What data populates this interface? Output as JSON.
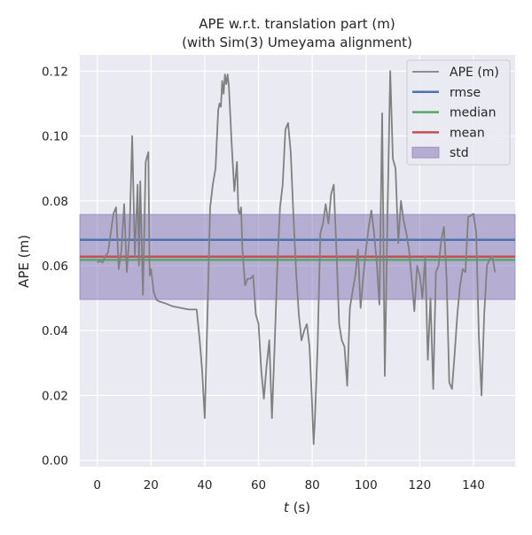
{
  "chart_data": {
    "type": "line",
    "title": "APE w.r.t. translation part (m)",
    "subtitle": "(with Sim(3) Umeyama alignment)",
    "xlabel_italic": "t",
    "xlabel_rest": " (s)",
    "ylabel": "APE (m)",
    "xlim": [
      -6.5,
      155.5
    ],
    "ylim": [
      -0.002,
      0.125
    ],
    "x_ticks": [
      0,
      20,
      40,
      60,
      80,
      100,
      120,
      140
    ],
    "y_ticks": [
      0.0,
      0.02,
      0.04,
      0.06,
      0.08,
      0.1,
      0.12
    ],
    "y_tick_labels": [
      "0.00",
      "0.02",
      "0.04",
      "0.06",
      "0.08",
      "0.10",
      "0.12"
    ],
    "grid": true,
    "legend_position": "top-right",
    "legend": [
      {
        "label": "APE (m)",
        "type": "line",
        "color": "#808080"
      },
      {
        "label": "rmse",
        "type": "line",
        "color": "#4c72b0"
      },
      {
        "label": "median",
        "type": "line",
        "color": "#55a868"
      },
      {
        "label": "mean",
        "type": "line",
        "color": "#c44e52"
      },
      {
        "label": "std",
        "type": "area",
        "color": "#8172b2"
      }
    ],
    "stats": {
      "rmse": 0.068,
      "median": 0.0618,
      "mean": 0.0628,
      "std_low": 0.0496,
      "std_high": 0.0758
    },
    "series": [
      {
        "name": "APE (m)",
        "color": "#808080",
        "x": [
          0,
          1,
          2,
          3,
          4,
          5,
          6,
          7,
          8,
          9,
          10,
          11,
          12,
          13,
          14,
          15,
          15.5,
          16,
          17,
          17.5,
          18,
          19,
          19.5,
          20,
          21,
          22,
          23,
          25,
          28,
          31,
          34,
          37,
          38,
          39,
          40,
          41,
          42,
          43,
          44,
          45,
          45.5,
          46,
          46.5,
          47,
          47.5,
          48,
          48.5,
          49,
          50,
          51,
          52,
          52.5,
          53,
          53.5,
          54,
          55,
          56,
          57,
          58,
          59,
          60,
          61,
          62,
          63,
          64,
          65,
          66,
          67,
          68,
          69,
          70,
          71,
          72,
          73,
          74,
          75,
          76,
          77,
          78,
          79,
          80,
          80.5,
          81,
          82,
          83,
          84,
          85,
          86,
          87,
          88,
          89,
          90,
          91,
          92,
          93,
          94,
          95,
          96,
          97,
          98,
          99,
          100,
          101,
          102,
          103,
          104,
          105,
          106,
          107,
          108,
          109,
          110,
          111,
          112,
          113,
          114,
          115,
          116,
          117,
          118,
          119,
          120,
          121,
          122,
          123,
          124,
          125,
          126,
          127,
          128,
          129,
          130,
          131,
          132,
          133,
          134,
          135,
          136,
          137,
          138,
          139,
          140,
          141,
          142,
          143,
          144,
          145,
          146,
          147,
          148
        ],
        "values": [
          0.061,
          0.0615,
          0.061,
          0.063,
          0.064,
          0.07,
          0.076,
          0.078,
          0.059,
          0.065,
          0.079,
          0.058,
          0.07,
          0.1,
          0.063,
          0.085,
          0.06,
          0.086,
          0.051,
          0.07,
          0.092,
          0.095,
          0.057,
          0.059,
          0.052,
          0.0495,
          0.049,
          0.0485,
          0.0475,
          0.047,
          0.0465,
          0.0465,
          0.038,
          0.028,
          0.013,
          0.045,
          0.078,
          0.085,
          0.09,
          0.108,
          0.11,
          0.109,
          0.117,
          0.113,
          0.119,
          0.116,
          0.119,
          0.115,
          0.098,
          0.083,
          0.092,
          0.077,
          0.076,
          0.078,
          0.065,
          0.054,
          0.056,
          0.056,
          0.057,
          0.045,
          0.042,
          0.028,
          0.019,
          0.029,
          0.037,
          0.013,
          0.035,
          0.06,
          0.078,
          0.085,
          0.102,
          0.104,
          0.095,
          0.075,
          0.058,
          0.045,
          0.037,
          0.04,
          0.042,
          0.035,
          0.016,
          0.005,
          0.013,
          0.035,
          0.07,
          0.073,
          0.079,
          0.073,
          0.082,
          0.085,
          0.065,
          0.042,
          0.037,
          0.035,
          0.023,
          0.047,
          0.052,
          0.057,
          0.065,
          0.047,
          0.057,
          0.065,
          0.072,
          0.077,
          0.07,
          0.061,
          0.048,
          0.107,
          0.026,
          0.075,
          0.12,
          0.093,
          0.09,
          0.067,
          0.08,
          0.074,
          0.07,
          0.065,
          0.056,
          0.046,
          0.06,
          0.057,
          0.05,
          0.063,
          0.031,
          0.05,
          0.022,
          0.058,
          0.06,
          0.068,
          0.072,
          0.056,
          0.024,
          0.022,
          0.033,
          0.045,
          0.054,
          0.059,
          0.058,
          0.075,
          0.0755,
          0.076,
          0.07,
          0.038,
          0.02,
          0.045,
          0.06,
          0.062,
          0.063,
          0.058
        ]
      }
    ]
  }
}
